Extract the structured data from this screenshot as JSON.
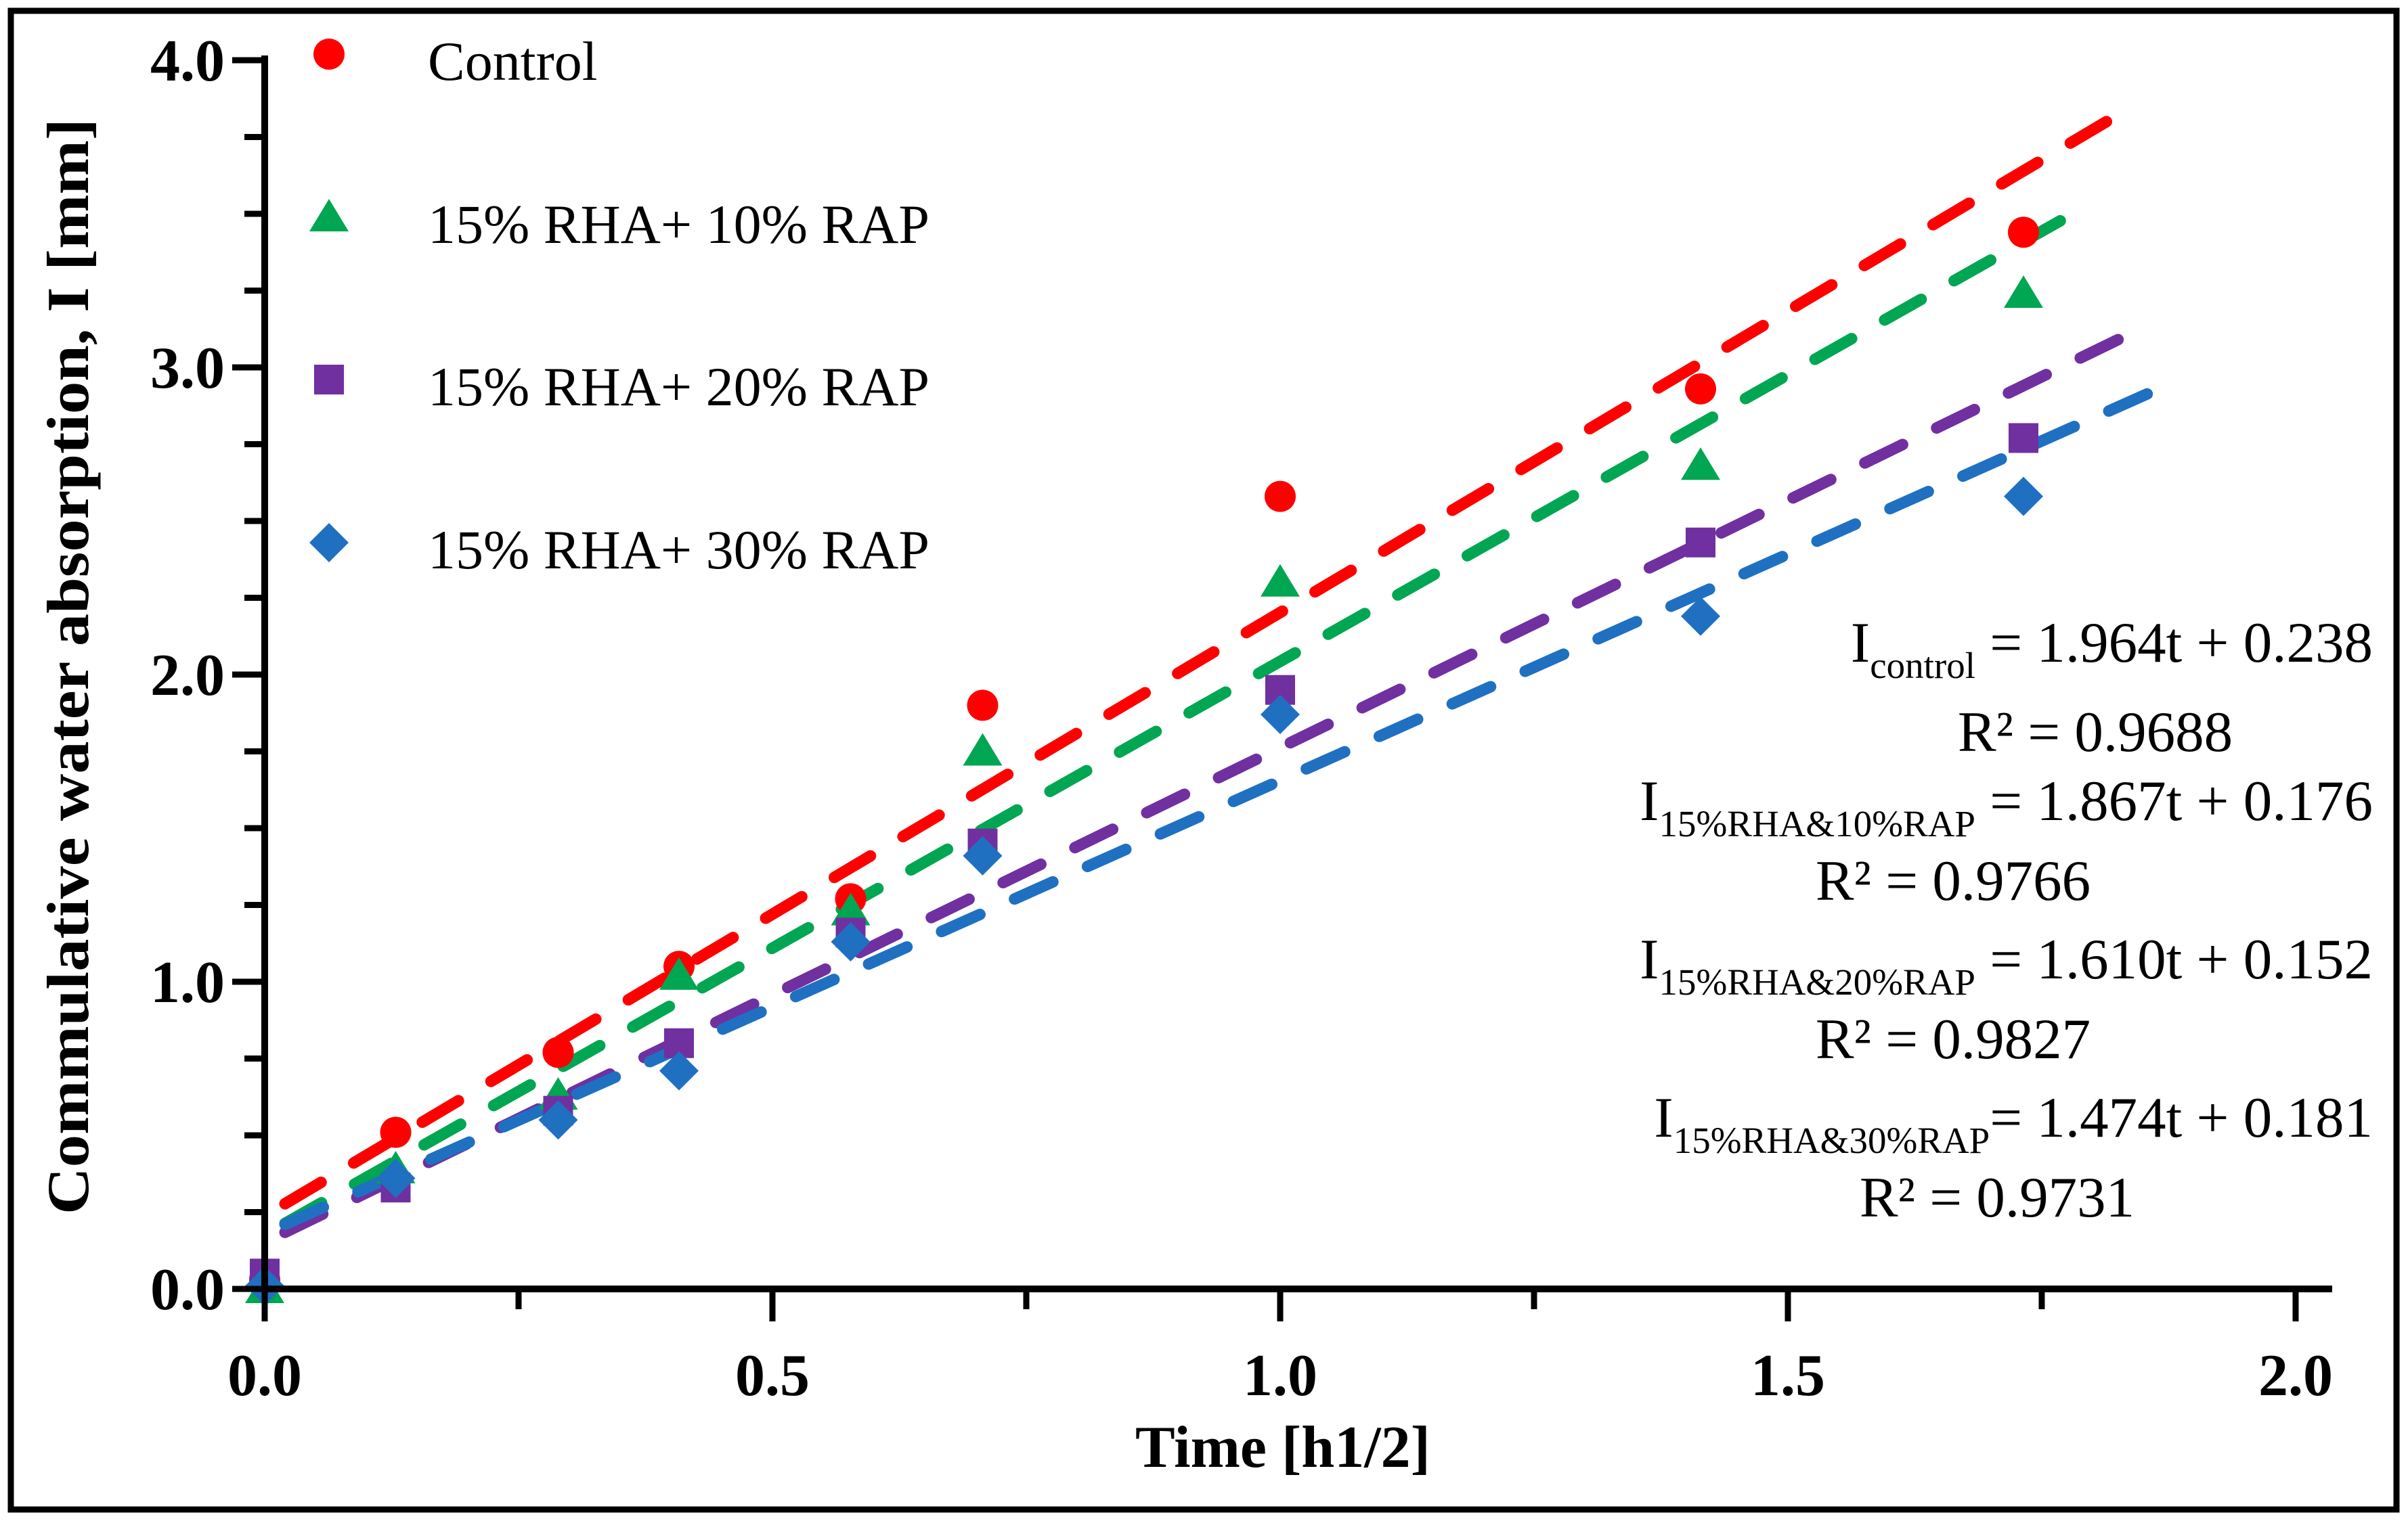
{
  "figure": {
    "background": "#ffffff",
    "border_color": "#000000",
    "text_color": "#000000"
  },
  "chart_data": {
    "type": "scatter",
    "title": "",
    "xlabel": "Time [h1/2]",
    "ylabel": "Commulative water absorption, I [mm]",
    "xlim": [
      0.0,
      2.0
    ],
    "ylim": [
      0.0,
      4.0
    ],
    "grid": false,
    "legend_position": "top-left",
    "x_tick_labels": [
      "0.0",
      "0.5",
      "1.0",
      "1.5",
      "2.0"
    ],
    "x_major_ticks": [
      0.0,
      0.5,
      1.0,
      1.5,
      2.0
    ],
    "x_minor_step": 0.25,
    "y_tick_labels": [
      "0.0",
      "1.0",
      "2.0",
      "3.0",
      "4.0"
    ],
    "y_major_ticks": [
      0.0,
      1.0,
      2.0,
      3.0,
      4.0
    ],
    "y_minor_step": 0.25,
    "x": [
      0.0,
      0.129,
      0.289,
      0.408,
      0.577,
      0.707,
      1.0,
      1.414,
      1.732
    ],
    "series": [
      {
        "name": "Control",
        "marker": "circle",
        "color": "#FE0000",
        "values": [
          0.03,
          0.51,
          0.77,
          1.05,
          1.27,
          1.9,
          2.58,
          2.93,
          3.44
        ],
        "trend": {
          "slope": 1.964,
          "intercept": 0.238,
          "t_start": 0.02,
          "t_end": 1.835
        }
      },
      {
        "name": "15% RHA+ 10% RAP",
        "marker": "triangle",
        "color": "#00A651",
        "values": [
          0.0,
          0.39,
          0.63,
          1.02,
          1.23,
          1.75,
          2.3,
          2.68,
          3.24
        ],
        "trend": {
          "slope": 1.867,
          "intercept": 0.176,
          "t_start": 0.02,
          "t_end": 1.795
        }
      },
      {
        "name": "15% RHA+ 20% RAP",
        "marker": "square",
        "color": "#7030A0",
        "values": [
          0.05,
          0.33,
          0.58,
          0.8,
          1.16,
          1.45,
          1.95,
          2.43,
          2.77
        ],
        "trend": {
          "slope": 1.61,
          "intercept": 0.152,
          "t_start": 0.02,
          "t_end": 1.845
        }
      },
      {
        "name": "15% RHA+ 30% RAP",
        "marker": "diamond",
        "color": "#1F70C1",
        "values": [
          0.01,
          0.36,
          0.55,
          0.71,
          1.13,
          1.41,
          1.87,
          2.19,
          2.58
        ],
        "trend": {
          "slope": 1.474,
          "intercept": 0.181,
          "t_start": 0.02,
          "t_end": 1.885
        }
      }
    ]
  },
  "annotations": {
    "equations": [
      {
        "lhs": "I",
        "sub": "control",
        "rhs": " = 1.964t + 0.238",
        "r2": "R² = 0.9688"
      },
      {
        "lhs": "I",
        "sub": "15%RHA&10%RAP",
        "rhs": " = 1.867t + 0.176",
        "r2": "R² = 0.9766"
      },
      {
        "lhs": "I",
        "sub": "15%RHA&20%RAP",
        "rhs": " = 1.610t + 0.152",
        "r2": "R² = 0.9827"
      },
      {
        "lhs": "I",
        "sub": "15%RHA&30%RAP",
        "rhs": "= 1.474t + 0.181",
        "r2": "R² = 0.9731"
      }
    ]
  }
}
